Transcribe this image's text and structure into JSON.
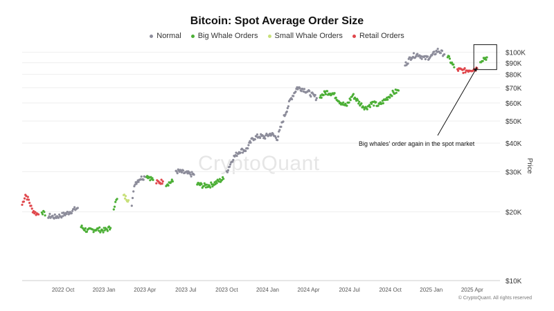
{
  "chart_data": {
    "type": "scatter",
    "title": "Bitcoin: Spot Average Order Size",
    "legend": [
      {
        "name": "Normal",
        "color": "#8c8c9a"
      },
      {
        "name": "Big Whale Orders",
        "color": "#4caf36"
      },
      {
        "name": "Small Whale Orders",
        "color": "#c8e07a"
      },
      {
        "name": "Retail Orders",
        "color": "#e0474c"
      }
    ],
    "xlabel": "",
    "ylabel": "Price",
    "y_scale": "log",
    "ylim": [
      10000,
      110000
    ],
    "xlim": [
      2022.5,
      2025.42
    ],
    "x_ticks": [
      {
        "label": "2022 Oct",
        "value": 2022.75
      },
      {
        "label": "2023 Jan",
        "value": 2023.0
      },
      {
        "label": "2023 Apr",
        "value": 2023.25
      },
      {
        "label": "2023 Jul",
        "value": 2023.5
      },
      {
        "label": "2023 Oct",
        "value": 2023.75
      },
      {
        "label": "2024 Jan",
        "value": 2024.0
      },
      {
        "label": "2024 Apr",
        "value": 2024.25
      },
      {
        "label": "2024 Jul",
        "value": 2024.5
      },
      {
        "label": "2024 Oct",
        "value": 2024.75
      },
      {
        "label": "2025 Jan",
        "value": 2025.0
      },
      {
        "label": "2025 Apr",
        "value": 2025.25
      }
    ],
    "y_ticks": [
      {
        "label": "$100K",
        "value": 100000
      },
      {
        "label": "$90K",
        "value": 90000
      },
      {
        "label": "$80K",
        "value": 80000
      },
      {
        "label": "$70K",
        "value": 70000
      },
      {
        "label": "$60K",
        "value": 60000
      },
      {
        "label": "$50K",
        "value": 50000
      },
      {
        "label": "$40K",
        "value": 40000
      },
      {
        "label": "$30K",
        "value": 30000
      },
      {
        "label": "$20K",
        "value": 20000
      },
      {
        "label": "$10K",
        "value": 10000
      }
    ],
    "series_segments": [
      {
        "category": "Retail Orders",
        "points": [
          [
            2022.5,
            21500
          ],
          [
            2022.52,
            23800
          ],
          [
            2022.54,
            22500
          ],
          [
            2022.56,
            20500
          ],
          [
            2022.58,
            19800
          ],
          [
            2022.6,
            19500
          ]
        ]
      },
      {
        "category": "Big Whale Orders",
        "points": [
          [
            2022.62,
            20200
          ],
          [
            2022.64,
            19300
          ]
        ]
      },
      {
        "category": "Normal",
        "points": [
          [
            2022.66,
            19200
          ],
          [
            2022.7,
            19000
          ],
          [
            2022.74,
            19300
          ],
          [
            2022.78,
            19800
          ],
          [
            2022.82,
            20500
          ],
          [
            2022.84,
            20800
          ]
        ]
      },
      {
        "category": "Big Whale Orders",
        "points": [
          [
            2022.86,
            17200
          ],
          [
            2022.9,
            16500
          ],
          [
            2022.95,
            16800
          ],
          [
            2023.0,
            16600
          ],
          [
            2023.04,
            17000
          ]
        ]
      },
      {
        "category": "Big Whale Orders",
        "points": [
          [
            2023.06,
            21000
          ],
          [
            2023.08,
            22800
          ]
        ]
      },
      {
        "category": "Small Whale Orders",
        "points": [
          [
            2023.12,
            23500
          ],
          [
            2023.15,
            22500
          ]
        ]
      },
      {
        "category": "Normal",
        "points": [
          [
            2023.17,
            21800
          ],
          [
            2023.19,
            26800
          ],
          [
            2023.22,
            28000
          ],
          [
            2023.25,
            28500
          ]
        ]
      },
      {
        "category": "Big Whale Orders",
        "points": [
          [
            2023.26,
            29000
          ],
          [
            2023.3,
            27600
          ]
        ]
      },
      {
        "category": "Retail Orders",
        "points": [
          [
            2023.32,
            26900
          ],
          [
            2023.36,
            27200
          ]
        ]
      },
      {
        "category": "Big Whale Orders",
        "points": [
          [
            2023.38,
            26500
          ],
          [
            2023.42,
            27200
          ]
        ]
      },
      {
        "category": "Normal",
        "points": [
          [
            2023.44,
            30200
          ],
          [
            2023.48,
            29800
          ],
          [
            2023.52,
            29300
          ],
          [
            2023.55,
            29100
          ]
        ]
      },
      {
        "category": "Big Whale Orders",
        "points": [
          [
            2023.57,
            26500
          ],
          [
            2023.61,
            26000
          ],
          [
            2023.65,
            26200
          ],
          [
            2023.69,
            27000
          ],
          [
            2023.73,
            27900
          ]
        ]
      },
      {
        "category": "Normal",
        "points": [
          [
            2023.75,
            30000
          ],
          [
            2023.79,
            34500
          ],
          [
            2023.83,
            37000
          ],
          [
            2023.87,
            37500
          ],
          [
            2023.91,
            42000
          ],
          [
            2023.95,
            43000
          ],
          [
            2023.98,
            42500
          ],
          [
            2024.02,
            44000
          ],
          [
            2024.06,
            42000
          ],
          [
            2024.1,
            52000
          ],
          [
            2024.14,
            62000
          ],
          [
            2024.18,
            70000
          ],
          [
            2024.22,
            69000
          ],
          [
            2024.26,
            66000
          ],
          [
            2024.3,
            63000
          ]
        ]
      },
      {
        "category": "Big Whale Orders",
        "points": [
          [
            2024.32,
            64000
          ],
          [
            2024.36,
            67000
          ],
          [
            2024.4,
            66000
          ],
          [
            2024.44,
            61000
          ],
          [
            2024.48,
            58000
          ],
          [
            2024.52,
            65000
          ],
          [
            2024.56,
            60000
          ],
          [
            2024.6,
            57000
          ],
          [
            2024.64,
            60000
          ],
          [
            2024.68,
            58500
          ],
          [
            2024.72,
            62000
          ],
          [
            2024.76,
            66000
          ],
          [
            2024.8,
            68000
          ]
        ]
      },
      {
        "category": "Normal",
        "points": [
          [
            2024.84,
            88000
          ],
          [
            2024.88,
            96000
          ],
          [
            2024.92,
            98000
          ],
          [
            2024.96,
            94000
          ],
          [
            2025.0,
            96000
          ],
          [
            2025.04,
            102000
          ],
          [
            2025.08,
            98000
          ]
        ]
      },
      {
        "category": "Big Whale Orders",
        "points": [
          [
            2025.1,
            96000
          ],
          [
            2025.14,
            86000
          ]
        ]
      },
      {
        "category": "Retail Orders",
        "points": [
          [
            2025.16,
            84000
          ],
          [
            2025.2,
            83000
          ],
          [
            2025.24,
            84000
          ],
          [
            2025.28,
            85000
          ]
        ]
      },
      {
        "category": "Big Whale Orders",
        "points": [
          [
            2025.3,
            92000
          ],
          [
            2025.32,
            94000
          ],
          [
            2025.34,
            95000
          ]
        ]
      }
    ],
    "annotation": {
      "text": "Big whales' order again in the spot market",
      "target_x": 2025.28,
      "target_y": 86000,
      "text_x": 2024.75,
      "text_y": 41000
    },
    "highlight_box": {
      "x0": 2025.26,
      "x1": 2025.4,
      "y0": 84000,
      "y1": 108000
    },
    "watermark": "CryptoQuant",
    "copyright": "© CryptoQuant. All rights reserved"
  }
}
